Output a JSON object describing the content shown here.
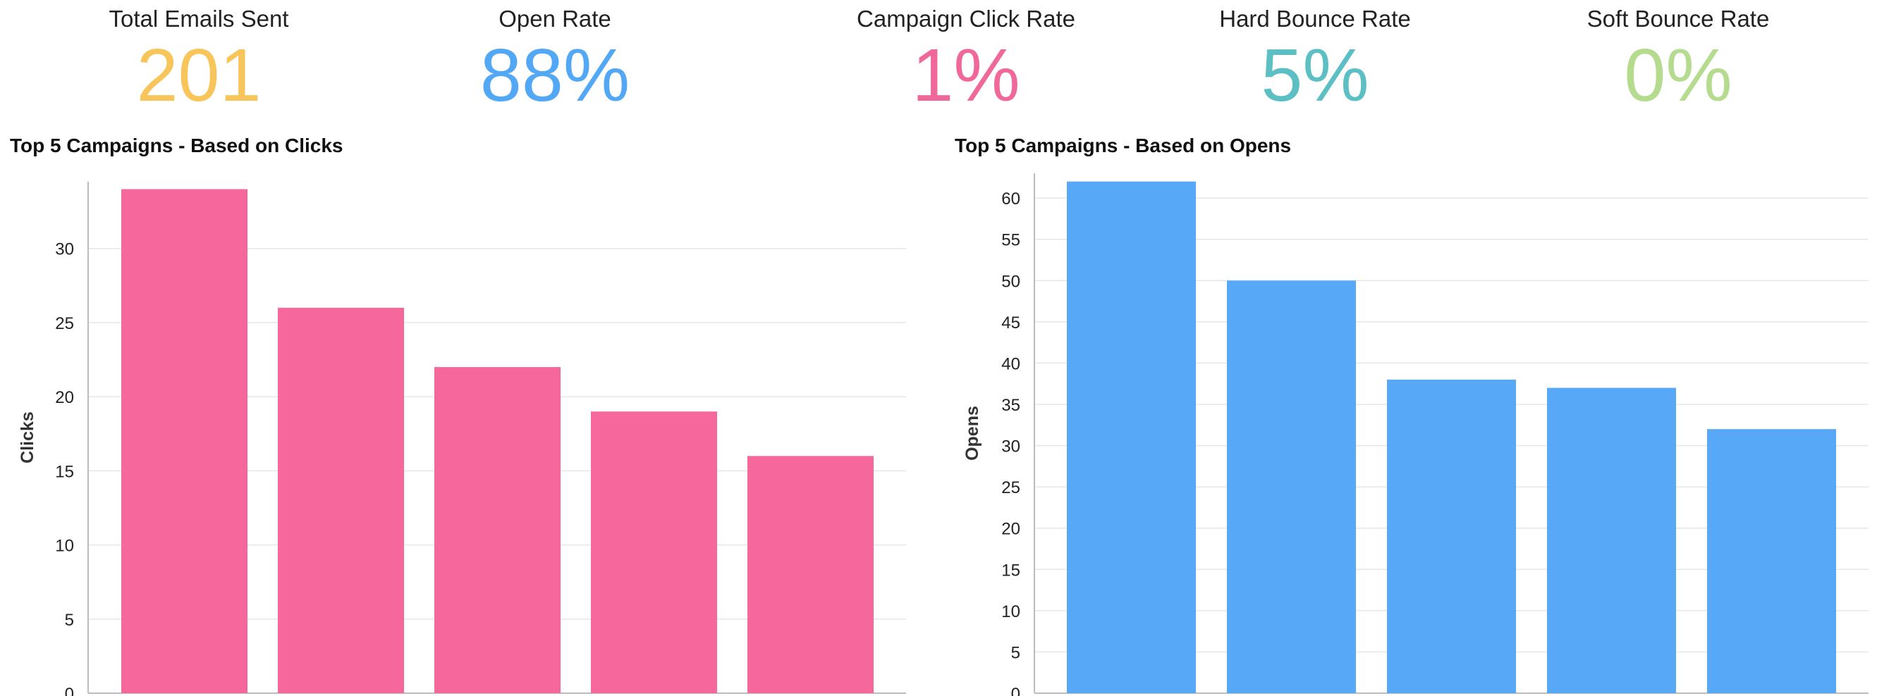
{
  "kpis": [
    {
      "label": "Total Emails Sent",
      "value": "201",
      "color": "#f7c55a"
    },
    {
      "label": "Open Rate",
      "value": "88%",
      "color": "#52a8f5"
    },
    {
      "label": "Campaign Click Rate",
      "value": "1%",
      "color": "#f0689a"
    },
    {
      "label": "Hard Bounce Rate",
      "value": "5%",
      "color": "#5cbfc3"
    },
    {
      "label": "Soft Bounce Rate",
      "value": "0%",
      "color": "#b5dc8e"
    }
  ],
  "chart_data": [
    {
      "type": "bar",
      "title": "Top 5 Campaigns - Based on Clicks",
      "ylabel": "Clicks",
      "xlabel": "",
      "values": [
        34,
        26,
        22,
        19,
        16
      ],
      "ylim": [
        0,
        34.5
      ],
      "yticks": [
        0,
        5,
        10,
        15,
        20,
        25,
        30
      ],
      "color": "#f6679b",
      "grid": true
    },
    {
      "type": "bar",
      "title": "Top 5 Campaigns - Based on Opens",
      "ylabel": "Opens",
      "xlabel": "",
      "values": [
        62,
        50,
        38,
        37,
        32
      ],
      "ylim": [
        0,
        63
      ],
      "yticks": [
        0,
        5,
        10,
        15,
        20,
        25,
        30,
        35,
        40,
        45,
        50,
        55,
        60
      ],
      "color": "#57a9f8",
      "grid": true
    }
  ]
}
